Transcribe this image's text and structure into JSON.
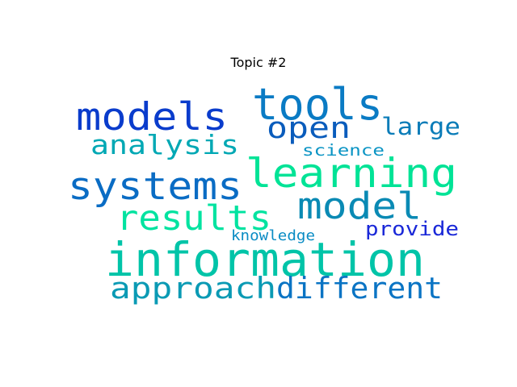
{
  "chart_data": {
    "type": "wordcloud",
    "title": "Topic #2",
    "words": [
      {
        "text": "information",
        "weight": 1.0,
        "color": "#00c4a8"
      },
      {
        "text": "tools",
        "weight": 0.93,
        "color": "#0a7bc4"
      },
      {
        "text": "learning",
        "weight": 0.86,
        "color": "#00e396"
      },
      {
        "text": "models",
        "weight": 0.82,
        "color": "#0a3ccc"
      },
      {
        "text": "systems",
        "weight": 0.82,
        "color": "#0a6cc4"
      },
      {
        "text": "model",
        "weight": 0.78,
        "color": "#0a8ab4"
      },
      {
        "text": "results",
        "weight": 0.74,
        "color": "#00e3a0"
      },
      {
        "text": "approach",
        "weight": 0.63,
        "color": "#0a9ab4"
      },
      {
        "text": "different",
        "weight": 0.63,
        "color": "#0a74c4"
      },
      {
        "text": "open",
        "weight": 0.63,
        "color": "#0a5cbc"
      },
      {
        "text": "analysis",
        "weight": 0.56,
        "color": "#00a8b4"
      },
      {
        "text": "large",
        "weight": 0.5,
        "color": "#0a7cb8"
      },
      {
        "text": "provide",
        "weight": 0.41,
        "color": "#1a28d8"
      },
      {
        "text": "science",
        "weight": 0.33,
        "color": "#0a94c4"
      },
      {
        "text": "knowledge",
        "weight": 0.3,
        "color": "#0a8cc4"
      }
    ]
  }
}
